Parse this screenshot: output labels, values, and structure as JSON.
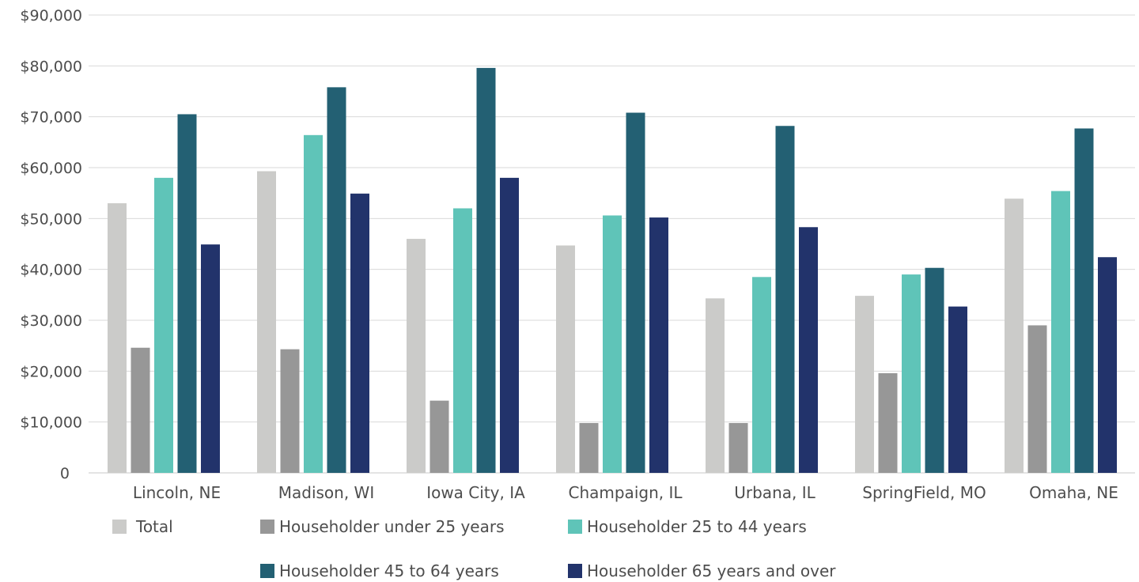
{
  "chart_data": {
    "type": "bar",
    "title": "",
    "xlabel": "",
    "ylabel": "",
    "categories": [
      "Lincoln, NE",
      "Madison, WI",
      "Iowa City, IA",
      "Champaign, IL",
      "Urbana, IL",
      "SpringField, MO",
      "Omaha, NE"
    ],
    "ylim": [
      0,
      90000
    ],
    "yticks": [
      0,
      10000,
      20000,
      30000,
      40000,
      50000,
      60000,
      70000,
      80000,
      90000
    ],
    "ytick_labels": [
      "0",
      "$10,000",
      "$20,000",
      "$30,000",
      "$40,000",
      "$50,000",
      "$60,000",
      "$70,000",
      "$80,000",
      "$90,000"
    ],
    "grid": true,
    "legend_position": "bottom",
    "series": [
      {
        "name": "Total",
        "color": "#cbcbc9",
        "values": [
          53000,
          59300,
          46000,
          44700,
          34300,
          34800,
          53900
        ]
      },
      {
        "name": "Householder under 25 years",
        "color": "#979797",
        "values": [
          24600,
          24300,
          14200,
          9800,
          9800,
          19600,
          29000
        ]
      },
      {
        "name": "Householder 25 to 44 years",
        "color": "#5fc4b8",
        "values": [
          58000,
          66400,
          52000,
          50600,
          38500,
          39000,
          55400
        ]
      },
      {
        "name": "Householder 45 to 64 years",
        "color": "#236073",
        "values": [
          70500,
          75800,
          79600,
          70800,
          68200,
          40300,
          67700
        ]
      },
      {
        "name": "Householder 65 years and over",
        "color": "#22336b",
        "values": [
          44900,
          54900,
          58000,
          50200,
          48300,
          32700,
          42400
        ]
      }
    ]
  }
}
